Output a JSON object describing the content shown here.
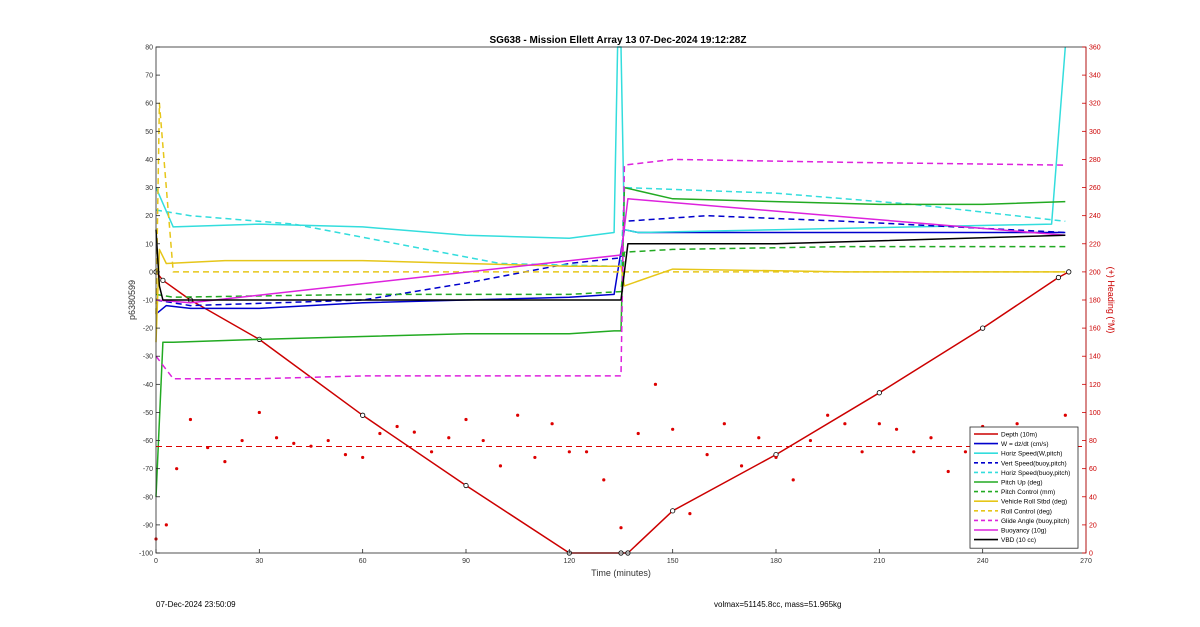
{
  "footer": {
    "timestamp": "07-Dec-2024 23:50:09",
    "mass_info": "volmax=51145.8cc, mass=51.965kg"
  },
  "chart_data": {
    "type": "line",
    "title": "SG638 - Mission Ellett Array 13 07-Dec-2024 19:12:28Z",
    "xlabel": "Time (minutes)",
    "ylabel": "p6380599",
    "y2label": "(+) Heading (°M)",
    "xlim": [
      0,
      270
    ],
    "ylim": [
      -100,
      80
    ],
    "y2lim": [
      0,
      360
    ],
    "xticks": [
      0,
      30,
      60,
      90,
      120,
      150,
      180,
      210,
      240,
      270
    ],
    "yticks": [
      -100,
      -90,
      -80,
      -70,
      -60,
      -50,
      -40,
      -30,
      -20,
      -10,
      0,
      10,
      20,
      30,
      40,
      50,
      60,
      70,
      80
    ],
    "y2ticks": [
      0,
      20,
      40,
      60,
      80,
      100,
      120,
      140,
      160,
      180,
      200,
      220,
      240,
      260,
      280,
      300,
      320,
      340,
      360
    ],
    "grid": false,
    "legend_position": "bottom-right",
    "colors": {
      "depth": "#cc0000",
      "w": "#0000cc",
      "horiz_speed": "#33dddd",
      "pitch": "#22aa22",
      "roll": "#e6c619",
      "glide": "#dd22dd",
      "vbd": "#000000",
      "heading": "#dd0000",
      "axis_right": "#cc0000"
    },
    "legend": [
      {
        "label": "Depth (10m)",
        "color": "#cc0000",
        "style": "solid"
      },
      {
        "label": "W = dz/dt (cm/s)",
        "color": "#0000cc",
        "style": "solid"
      },
      {
        "label": "Horiz Speed(W,pitch)",
        "color": "#33dddd",
        "style": "solid"
      },
      {
        "label": "Vert Speed(buoy,pitch)",
        "color": "#0000cc",
        "style": "dashed"
      },
      {
        "label": "Horiz Speed(buoy,pitch)",
        "color": "#33dddd",
        "style": "dashed"
      },
      {
        "label": "Pitch Up (deg)",
        "color": "#22aa22",
        "style": "solid"
      },
      {
        "label": "Pitch Control (mm)",
        "color": "#22aa22",
        "style": "dashed"
      },
      {
        "label": "Vehicle Roll Stbd (deg)",
        "color": "#e6c619",
        "style": "solid"
      },
      {
        "label": "Roll Control (deg)",
        "color": "#e6c619",
        "style": "dashed"
      },
      {
        "label": "Glide Angle (buoy,pitch)",
        "color": "#dd22dd",
        "style": "dashed"
      },
      {
        "label": "Buoyancy (10g)",
        "color": "#dd22dd",
        "style": "solid"
      },
      {
        "label": "VBD (10 cc)",
        "color": "#000000",
        "style": "solid"
      }
    ],
    "series": [
      {
        "name": "Depth (10m)",
        "key": "depth",
        "dash": "",
        "x": [
          0,
          2,
          10,
          30,
          60,
          90,
          120,
          135,
          137,
          150,
          180,
          210,
          240,
          262,
          265
        ],
        "y": [
          0,
          -3,
          -10,
          -24,
          -51,
          -76,
          -100,
          -100,
          -100,
          -85,
          -65,
          -43,
          -20,
          -2,
          0
        ]
      },
      {
        "name": "W = dz/dt (cm/s)",
        "key": "w",
        "dash": "",
        "x": [
          0,
          3,
          10,
          30,
          60,
          90,
          120,
          133,
          136,
          140,
          160,
          180,
          200,
          240,
          264
        ],
        "y": [
          -15,
          -12,
          -13,
          -13,
          -11,
          -10,
          -9,
          -8,
          15,
          14,
          14,
          14,
          14,
          14,
          14
        ]
      },
      {
        "name": "Horiz Speed(W,pitch)",
        "key": "horiz_speed",
        "dash": "",
        "x": [
          0,
          5,
          30,
          60,
          90,
          120,
          133,
          134,
          135,
          136,
          140,
          180,
          220,
          260,
          264
        ],
        "y": [
          30,
          16,
          17,
          16,
          13,
          12,
          14,
          80,
          80,
          15,
          14,
          15,
          16,
          17,
          80
        ]
      },
      {
        "name": "Vert Speed(buoy,pitch)",
        "key": "w",
        "dash": "6,4",
        "x": [
          0,
          10,
          60,
          90,
          120,
          135,
          136,
          160,
          200,
          264
        ],
        "y": [
          -10,
          -12,
          -10,
          -4,
          3,
          5,
          18,
          20,
          18,
          14
        ]
      },
      {
        "name": "Horiz Speed(buoy,pitch)",
        "key": "horiz_speed",
        "dash": "6,4",
        "x": [
          0,
          10,
          40,
          70,
          100,
          135,
          136,
          180,
          220,
          264
        ],
        "y": [
          22,
          20,
          17,
          10,
          3,
          2,
          30,
          28,
          24,
          18
        ]
      },
      {
        "name": "Pitch Up (deg)",
        "key": "pitch",
        "dash": "",
        "x": [
          0,
          2,
          5,
          30,
          60,
          90,
          120,
          133,
          135,
          136,
          150,
          180,
          210,
          240,
          264
        ],
        "y": [
          -80,
          -25,
          -25,
          -24,
          -23,
          -22,
          -22,
          -21,
          -21,
          30,
          26,
          25,
          24,
          24,
          25
        ]
      },
      {
        "name": "Pitch Control (mm)",
        "key": "pitch",
        "dash": "6,4",
        "x": [
          0,
          5,
          60,
          90,
          120,
          135,
          136,
          150,
          200,
          264
        ],
        "y": [
          -8,
          -9,
          -8,
          -8,
          -8,
          -7,
          7,
          8,
          9,
          9
        ]
      },
      {
        "name": "Vehicle Roll Stbd (deg)",
        "key": "roll",
        "dash": "",
        "x": [
          0,
          1,
          3,
          20,
          60,
          90,
          120,
          135,
          136,
          150,
          200,
          240,
          264
        ],
        "y": [
          -25,
          8,
          3,
          4,
          4,
          3,
          2,
          2,
          -5,
          1,
          0,
          0,
          0
        ]
      },
      {
        "name": "Roll Control (deg)",
        "key": "roll",
        "dash": "6,4",
        "x": [
          0,
          1,
          5,
          60,
          120,
          135,
          136,
          200,
          264
        ],
        "y": [
          -15,
          60,
          0,
          0,
          0,
          0,
          0,
          0,
          0
        ]
      },
      {
        "name": "Glide Angle (buoy,pitch)",
        "key": "glide",
        "dash": "6,4",
        "x": [
          0,
          5,
          30,
          60,
          90,
          120,
          135,
          136,
          150,
          200,
          264
        ],
        "y": [
          -30,
          -38,
          -38,
          -37,
          -37,
          -37,
          -37,
          38,
          40,
          39,
          38
        ]
      },
      {
        "name": "Buoyancy (10g)",
        "key": "glide",
        "dash": "",
        "x": [
          0,
          10,
          135,
          137,
          264
        ],
        "y": [
          -10,
          -11,
          6,
          26,
          13
        ]
      },
      {
        "name": "VBD (10 cc)",
        "key": "vbd",
        "dash": "",
        "x": [
          0,
          1,
          2,
          60,
          120,
          135,
          136,
          137,
          180,
          264
        ],
        "y": [
          15,
          -5,
          -10,
          -10,
          -10,
          -10,
          0,
          10,
          10,
          13
        ]
      },
      {
        "name": "Heading",
        "key": "heading",
        "dash": "",
        "axis": "right",
        "marker": "dot",
        "x": [
          0,
          3,
          6,
          10,
          15,
          20,
          25,
          30,
          35,
          40,
          45,
          50,
          55,
          60,
          65,
          70,
          75,
          80,
          85,
          90,
          95,
          100,
          105,
          110,
          115,
          120,
          125,
          130,
          135,
          140,
          145,
          150,
          155,
          160,
          165,
          170,
          175,
          180,
          185,
          190,
          195,
          200,
          205,
          210,
          215,
          220,
          225,
          230,
          235,
          240,
          245,
          250,
          255,
          260,
          264
        ],
        "y": [
          10,
          20,
          60,
          95,
          75,
          65,
          80,
          100,
          82,
          78,
          76,
          80,
          70,
          68,
          85,
          90,
          86,
          72,
          82,
          95,
          80,
          62,
          98,
          68,
          92,
          72,
          72,
          52,
          18,
          85,
          120,
          88,
          28,
          70,
          92,
          62,
          82,
          68,
          52,
          80,
          98,
          92,
          72,
          92,
          88,
          72,
          82,
          58,
          72,
          90,
          82,
          92,
          88,
          82,
          98
        ]
      }
    ]
  }
}
